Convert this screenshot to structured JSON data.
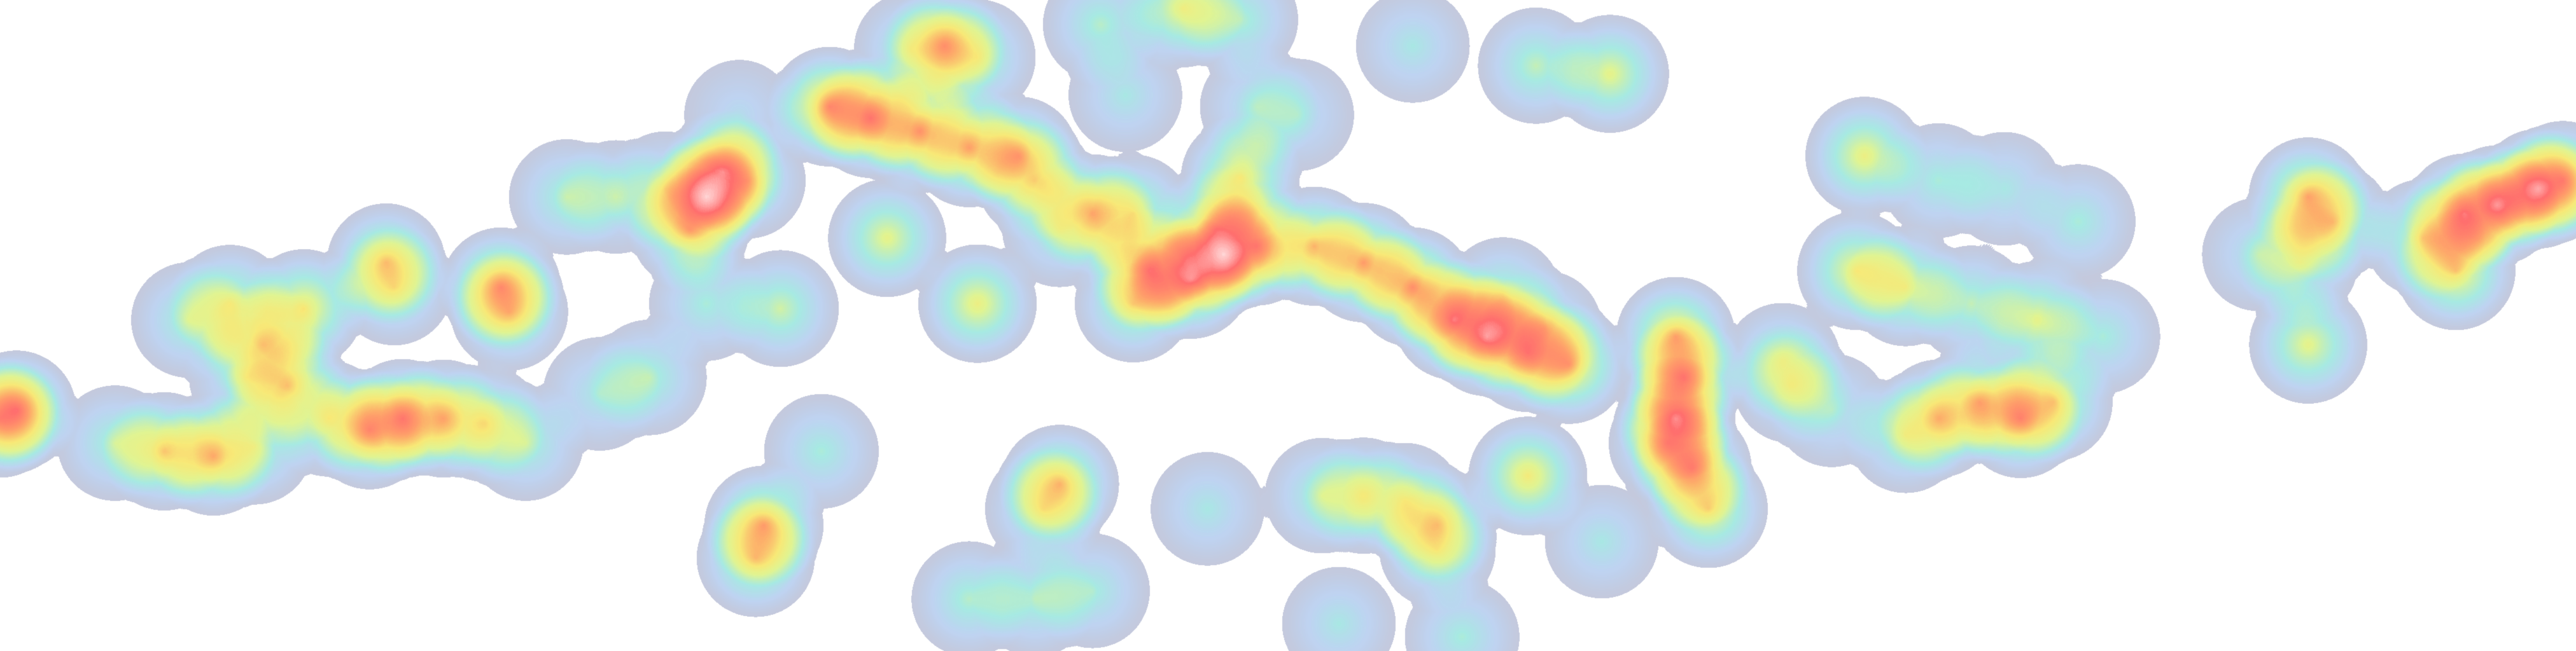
{
  "view": {
    "type": "heatmap-overlay",
    "background": "#ffffff"
  },
  "heat_gradient": {
    "0.00": "#7b7fa6",
    "0.18": "#8fb3e8",
    "0.32": "#7fe0d6",
    "0.48": "#d9f27a",
    "0.60": "#f7e76a",
    "0.75": "#ff9a6a",
    "0.86": "#ff6e6e",
    "0.97": "#ffd0d0",
    "1.00": "#ffffff"
  }
}
